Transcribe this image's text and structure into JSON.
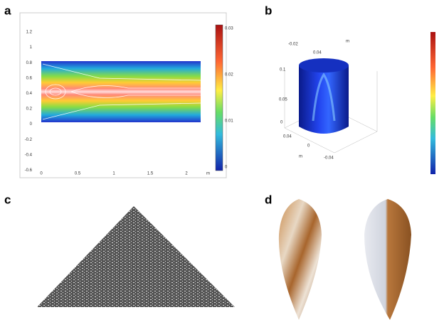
{
  "panels": [
    {
      "label": "a",
      "yticks": [
        "1.2",
        "1",
        "0.8",
        "0.6",
        "0.4",
        "0.2",
        "0",
        "-0.2",
        "-0.4",
        "-0.6"
      ],
      "xticks": [
        "0",
        "0.5",
        "1",
        "1.5",
        "2"
      ],
      "x_unit": "m",
      "colorbar": [
        "0.03",
        "0.02",
        "0.01",
        "0"
      ]
    },
    {
      "label": "b",
      "axis_labels": [
        "-0.02",
        "0.04",
        "0.1",
        "0.05",
        "0",
        "0.04",
        "0",
        "-0.04",
        "m",
        "m"
      ]
    },
    {
      "label": "c"
    },
    {
      "label": "d"
    }
  ]
}
